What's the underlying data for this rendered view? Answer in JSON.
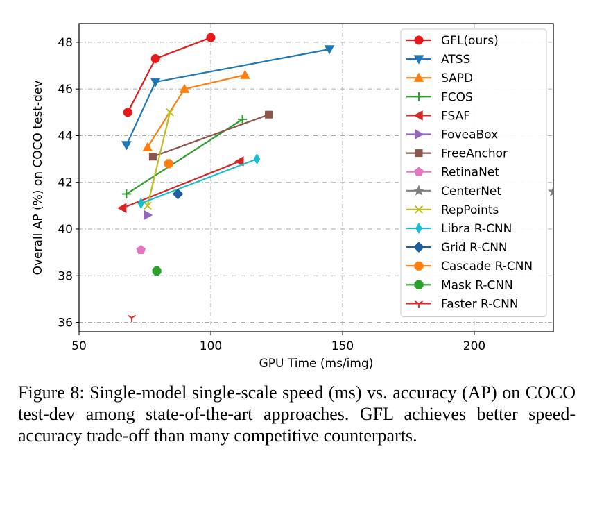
{
  "chart_data": {
    "type": "line",
    "xlabel": "GPU Time (ms/img)",
    "ylabel": "Overall AP (%) on COCO test-dev",
    "xlim": [
      50,
      230
    ],
    "ylim": [
      35.6,
      48.8
    ],
    "xticks": [
      50,
      100,
      150,
      200
    ],
    "yticks": [
      36,
      38,
      40,
      42,
      44,
      46,
      48
    ],
    "grid": true,
    "legend_position": "right",
    "series": [
      {
        "name": "GFL(ours)",
        "color": "#e41a1c",
        "marker": "circle",
        "x": [
          68.5,
          79,
          100
        ],
        "y": [
          45.0,
          47.3,
          48.2
        ]
      },
      {
        "name": "ATSS",
        "color": "#1f77b4",
        "marker": "triangle-down",
        "x": [
          68,
          79,
          145
        ],
        "y": [
          43.6,
          46.3,
          47.7
        ]
      },
      {
        "name": "SAPD",
        "color": "#ff7f0e",
        "marker": "triangle-up",
        "x": [
          76,
          90,
          113
        ],
        "y": [
          43.5,
          46.0,
          46.6
        ]
      },
      {
        "name": "FCOS",
        "color": "#2ca02c",
        "marker": "plus",
        "x": [
          68,
          112
        ],
        "y": [
          41.5,
          44.7
        ]
      },
      {
        "name": "FSAF",
        "color": "#d62728",
        "marker": "triangle-left",
        "x": [
          66.5,
          111
        ],
        "y": [
          40.9,
          42.9
        ]
      },
      {
        "name": "FoveaBox",
        "color": "#9467bd",
        "marker": "triangle-right",
        "x": [
          76
        ],
        "y": [
          40.6
        ]
      },
      {
        "name": "FreeAnchor",
        "color": "#8c564b",
        "marker": "square",
        "x": [
          78,
          122
        ],
        "y": [
          43.1,
          44.9
        ]
      },
      {
        "name": "RetinaNet",
        "color": "#e377c2",
        "marker": "pentagon",
        "x": [
          73.5
        ],
        "y": [
          39.1
        ]
      },
      {
        "name": "CenterNet",
        "color": "#7f7f7f",
        "marker": "star",
        "x": [
          230
        ],
        "y": [
          41.6
        ]
      },
      {
        "name": "RepPoints",
        "color": "#bcbd22",
        "marker": "x",
        "x": [
          76,
          84.5
        ],
        "y": [
          41.0,
          45.0
        ]
      },
      {
        "name": "Libra R-CNN",
        "color": "#17becf",
        "marker": "thin-diamond",
        "x": [
          73.5,
          117.5
        ],
        "y": [
          41.1,
          43.0
        ]
      },
      {
        "name": "Grid R-CNN",
        "color": "#1f5fa0",
        "marker": "diamond",
        "x": [
          87.5
        ],
        "y": [
          41.5
        ]
      },
      {
        "name": "Cascade R-CNN",
        "color": "#ff7f0e",
        "marker": "octagon",
        "x": [
          84
        ],
        "y": [
          42.8
        ]
      },
      {
        "name": "Mask R-CNN",
        "color": "#2ca02c",
        "marker": "octagon",
        "x": [
          79.5
        ],
        "y": [
          38.2
        ]
      },
      {
        "name": "Faster R-CNN",
        "color": "#d62728",
        "marker": "tri-down",
        "x": [
          70
        ],
        "y": [
          36.2
        ]
      }
    ]
  },
  "caption": "Figure 8: Single-model single-scale speed (ms) vs. accuracy (AP) on COCO test-dev among state-of-the-art approaches. GFL achieves better speed-accuracy trade-off than many competitive counterparts."
}
